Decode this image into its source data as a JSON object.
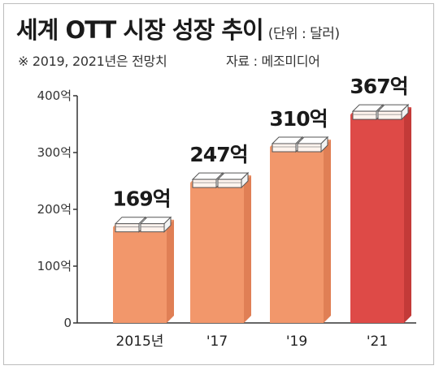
{
  "title": "세계 OTT 시장 성장 추이",
  "unit_note": "(단위 : 달러)",
  "footnote": "※ 2019, 2021년은 전망치",
  "source": "자료 : 메조미디어",
  "colors": {
    "bar": "#f2976b",
    "bar_side": "#e07f55",
    "bar_highlight": "#de4a47",
    "bar_highlight_side": "#c33a38",
    "axis": "#333333"
  },
  "chart_data": {
    "type": "bar",
    "title": "세계 OTT 시장 성장 추이",
    "unit": "(단위 : 달러)",
    "categories": [
      "2015년",
      "'17",
      "'19",
      "'21"
    ],
    "values": [
      169,
      247,
      310,
      367
    ],
    "value_labels": [
      "169억",
      "247억",
      "310억",
      "367억"
    ],
    "highlight_index": 3,
    "ylim": [
      0,
      400
    ],
    "yticks": [
      0,
      100,
      200,
      300,
      400
    ],
    "ytick_labels": [
      "0",
      "100억",
      "200억",
      "300억",
      "400억"
    ],
    "grid": false,
    "legend": "none"
  }
}
